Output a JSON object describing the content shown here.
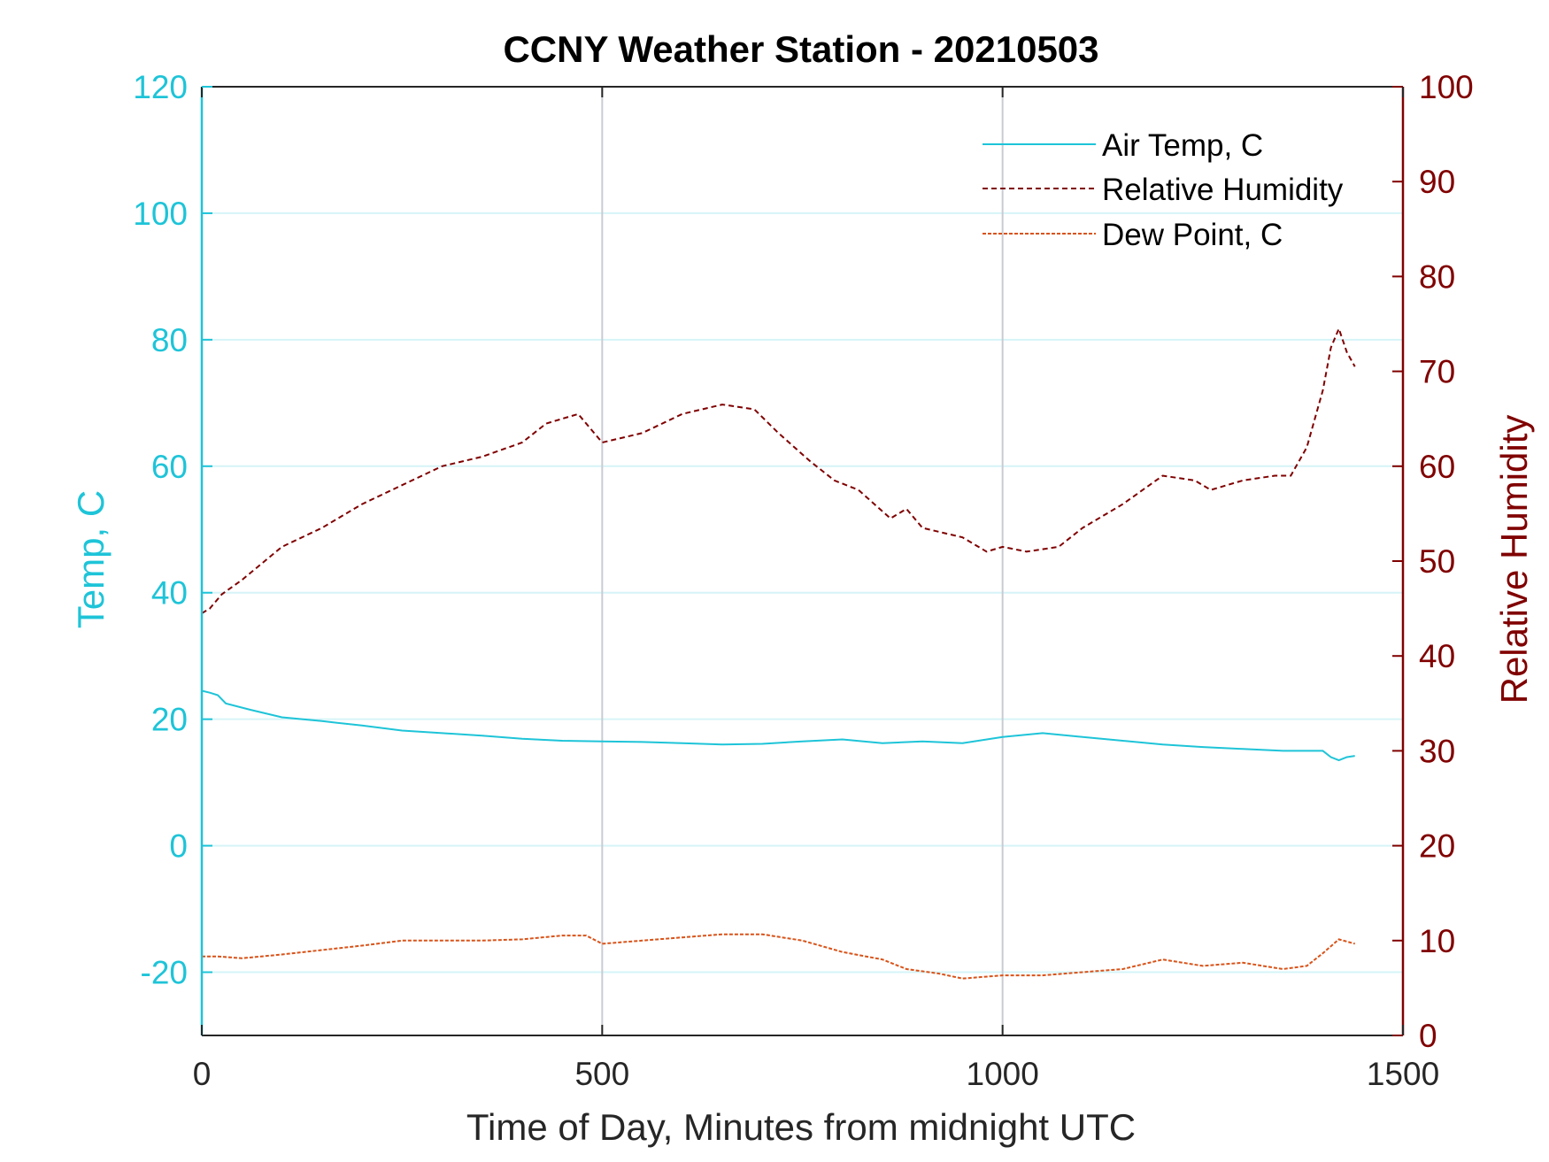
{
  "chart_data": {
    "type": "line",
    "title": "CCNY Weather Station - 20210503",
    "xlabel": "Time of Day, Minutes from midnight UTC",
    "ylabel_left": "Temp, C",
    "ylabel_right": "Relative Humidity",
    "xlim": [
      0,
      1500
    ],
    "ylim_left": [
      -30,
      120
    ],
    "ylim_right": [
      0,
      100
    ],
    "x_ticks": [
      0,
      500,
      1000,
      1500
    ],
    "y_ticks_left": [
      -20,
      0,
      20,
      40,
      60,
      80,
      100,
      120
    ],
    "y_ticks_right": [
      0,
      10,
      20,
      30,
      40,
      50,
      60,
      70,
      80,
      90,
      100
    ],
    "grid": true,
    "legend_position": "top-right",
    "colors": {
      "left_axis": "#1ec4d8",
      "right_axis": "#800000",
      "air_temp": "#1ec4d8",
      "humidity": "#800000",
      "dew_point": "#d95319",
      "grid_x": "#c8ccd2",
      "grid_y": "#d6f4f8"
    },
    "series": [
      {
        "name": "Air Temp, C",
        "axis": "left",
        "style": "solid",
        "x": [
          0,
          10,
          20,
          30,
          60,
          100,
          150,
          200,
          250,
          300,
          350,
          400,
          450,
          500,
          550,
          600,
          650,
          700,
          750,
          800,
          850,
          900,
          950,
          1000,
          1050,
          1100,
          1150,
          1200,
          1250,
          1300,
          1350,
          1400,
          1410,
          1420,
          1430,
          1440
        ],
        "values": [
          24.5,
          24.2,
          23.8,
          22.5,
          21.5,
          20.3,
          19.7,
          19.0,
          18.2,
          17.8,
          17.4,
          16.9,
          16.6,
          16.5,
          16.4,
          16.2,
          16.0,
          16.1,
          16.5,
          16.8,
          16.2,
          16.5,
          16.2,
          17.2,
          17.8,
          17.2,
          16.6,
          16.0,
          15.6,
          15.3,
          15.0,
          15.0,
          14.0,
          13.5,
          14.0,
          14.2
        ]
      },
      {
        "name": "Relative Humidity",
        "axis": "right",
        "style": "dashed",
        "x": [
          0,
          10,
          25,
          50,
          100,
          150,
          200,
          250,
          300,
          350,
          400,
          430,
          470,
          500,
          550,
          600,
          650,
          690,
          720,
          760,
          790,
          820,
          860,
          880,
          900,
          950,
          980,
          1000,
          1030,
          1070,
          1100,
          1150,
          1200,
          1240,
          1260,
          1300,
          1340,
          1360,
          1380,
          1400,
          1410,
          1420,
          1430,
          1440
        ],
        "values": [
          44.5,
          45.0,
          46.5,
          48.0,
          51.5,
          53.5,
          56.0,
          58.0,
          60.0,
          61.0,
          62.5,
          64.5,
          65.5,
          62.5,
          63.5,
          65.5,
          66.5,
          66.0,
          63.5,
          60.5,
          58.5,
          57.5,
          54.5,
          55.5,
          53.5,
          52.5,
          51.0,
          51.5,
          51.0,
          51.5,
          53.5,
          56.0,
          59.0,
          58.5,
          57.5,
          58.5,
          59.0,
          59.0,
          62.0,
          68.0,
          72.5,
          74.5,
          72.0,
          70.5
        ]
      },
      {
        "name": "Dew Point, C",
        "axis": "left",
        "style": "dashed",
        "x": [
          0,
          20,
          50,
          100,
          150,
          200,
          250,
          300,
          350,
          400,
          450,
          480,
          500,
          550,
          600,
          650,
          700,
          750,
          800,
          850,
          880,
          920,
          950,
          1000,
          1050,
          1100,
          1150,
          1200,
          1250,
          1300,
          1350,
          1380,
          1400,
          1420,
          1440
        ],
        "values": [
          -17.5,
          -17.5,
          -17.8,
          -17.2,
          -16.5,
          -15.8,
          -15.0,
          -15.0,
          -15.0,
          -14.8,
          -14.2,
          -14.2,
          -15.5,
          -15.0,
          -14.5,
          -14.0,
          -14.0,
          -15.0,
          -16.8,
          -18.0,
          -19.5,
          -20.2,
          -21.0,
          -20.5,
          -20.5,
          -20.0,
          -19.5,
          -18.0,
          -19.0,
          -18.5,
          -19.5,
          -19.0,
          -17.0,
          -14.8,
          -15.5
        ]
      }
    ]
  }
}
